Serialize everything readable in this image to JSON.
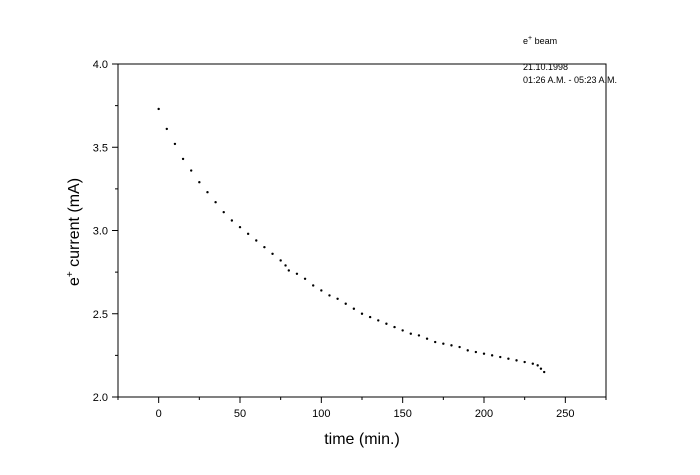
{
  "chart_data": {
    "type": "scatter",
    "title": "",
    "xlabel": "time (min.)",
    "ylabel_base": "e",
    "ylabel_sup": "+",
    "ylabel_rest": " current (mA)",
    "xlim": [
      -25,
      275
    ],
    "ylim": [
      2.0,
      4.0
    ],
    "xticks": [
      0,
      50,
      100,
      150,
      200,
      250
    ],
    "xtick_labels": [
      "0",
      "50",
      "100",
      "150",
      "200",
      "250"
    ],
    "yticks": [
      2.0,
      2.5,
      3.0,
      3.5,
      4.0
    ],
    "ytick_labels": [
      "2.0",
      "2.5",
      "3.0",
      "3.5",
      "4.0"
    ],
    "grid": false,
    "marker_color": "#000000",
    "annotation": {
      "beam_base": "e",
      "beam_sup": "+",
      "beam_rest": " beam",
      "date": "21.10.1998",
      "time_range": "01:26 A.M. - 05:23 A.M."
    },
    "series": [
      {
        "x": [
          0,
          5,
          10,
          15,
          20,
          25,
          30,
          35,
          40,
          45,
          50,
          55,
          60,
          65,
          70,
          75,
          78,
          80,
          85,
          90,
          95,
          100,
          105,
          110,
          115,
          120,
          125,
          130,
          135,
          140,
          145,
          150,
          155,
          160,
          165,
          170,
          175,
          180,
          185,
          190,
          195,
          200,
          205,
          210,
          215,
          220,
          225,
          230,
          233,
          235,
          237
        ],
        "y": [
          3.73,
          3.61,
          3.52,
          3.43,
          3.36,
          3.29,
          3.23,
          3.17,
          3.11,
          3.06,
          3.02,
          2.98,
          2.94,
          2.9,
          2.86,
          2.82,
          2.79,
          2.76,
          2.74,
          2.71,
          2.67,
          2.64,
          2.61,
          2.59,
          2.56,
          2.53,
          2.5,
          2.48,
          2.46,
          2.44,
          2.42,
          2.4,
          2.38,
          2.37,
          2.35,
          2.33,
          2.32,
          2.31,
          2.3,
          2.28,
          2.27,
          2.26,
          2.25,
          2.24,
          2.23,
          2.22,
          2.21,
          2.2,
          2.19,
          2.17,
          2.15
        ]
      }
    ]
  }
}
